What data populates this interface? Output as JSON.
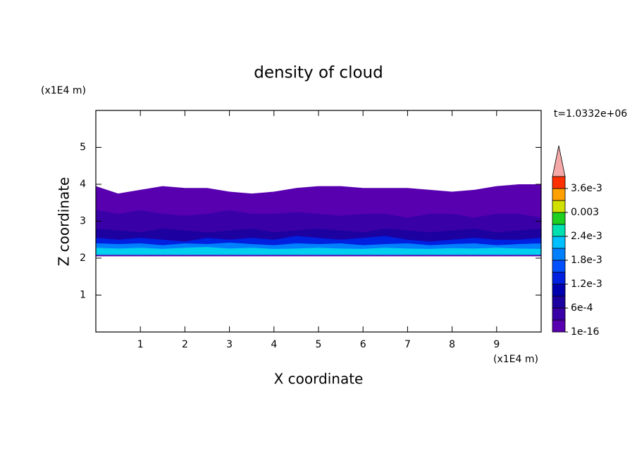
{
  "chart_data": {
    "type": "contour",
    "title": "density of cloud",
    "xlabel": "X coordinate",
    "ylabel": "Z coordinate",
    "x_unit": "(x1E4 m)",
    "y_unit": "(x1E4 m)",
    "annotation": "t=1.0332e+06",
    "xlim": [
      0,
      10
    ],
    "ylim": [
      0,
      6
    ],
    "xticks": [
      1,
      2,
      3,
      4,
      5,
      6,
      7,
      8,
      9
    ],
    "yticks": [
      1,
      2,
      3,
      4,
      5
    ],
    "x": [
      0,
      0.5,
      1,
      1.5,
      2,
      2.5,
      3,
      3.5,
      4,
      4.5,
      5,
      5.5,
      6,
      6.5,
      7,
      7.5,
      8,
      8.5,
      9,
      9.5,
      10
    ],
    "cloud_base": 2.07,
    "layers": [
      {
        "color": "#5800b0",
        "top": [
          3.95,
          3.75,
          3.85,
          3.95,
          3.9,
          3.9,
          3.8,
          3.75,
          3.8,
          3.9,
          3.95,
          3.95,
          3.9,
          3.9,
          3.9,
          3.85,
          3.8,
          3.85,
          3.95,
          4.0,
          4.0
        ]
      },
      {
        "color": "#3a00a8",
        "top": [
          3.3,
          3.2,
          3.3,
          3.2,
          3.15,
          3.2,
          3.3,
          3.2,
          3.2,
          3.25,
          3.2,
          3.15,
          3.2,
          3.2,
          3.1,
          3.2,
          3.2,
          3.1,
          3.2,
          3.2,
          3.1
        ]
      },
      {
        "color": "#1c00a0",
        "top": [
          2.8,
          2.75,
          2.7,
          2.8,
          2.75,
          2.7,
          2.75,
          2.8,
          2.7,
          2.75,
          2.8,
          2.75,
          2.7,
          2.8,
          2.75,
          2.7,
          2.75,
          2.8,
          2.7,
          2.75,
          2.8
        ]
      },
      {
        "color": "#0020e0",
        "top": [
          2.55,
          2.5,
          2.55,
          2.5,
          2.45,
          2.55,
          2.5,
          2.55,
          2.5,
          2.6,
          2.55,
          2.5,
          2.55,
          2.6,
          2.5,
          2.45,
          2.5,
          2.55,
          2.5,
          2.5,
          2.55
        ]
      },
      {
        "color": "#0080ff",
        "top": [
          2.4,
          2.38,
          2.4,
          2.35,
          2.4,
          2.38,
          2.42,
          2.38,
          2.35,
          2.4,
          2.38,
          2.4,
          2.35,
          2.38,
          2.4,
          2.35,
          2.38,
          2.4,
          2.35,
          2.38,
          2.4
        ]
      },
      {
        "color": "#00d0f0",
        "top": [
          2.28,
          2.26,
          2.28,
          2.25,
          2.28,
          2.3,
          2.26,
          2.28,
          2.25,
          2.26,
          2.28,
          2.26,
          2.25,
          2.28,
          2.26,
          2.25,
          2.27,
          2.26,
          2.28,
          2.26,
          2.25
        ]
      }
    ],
    "colorbar": {
      "clim": [
        1e-16,
        0.0039
      ],
      "colors": [
        "#5800b0",
        "#3a00a8",
        "#1c00a0",
        "#0000b0",
        "#0020e0",
        "#0050ff",
        "#0080ff",
        "#00c0ff",
        "#00e0b0",
        "#20d020",
        "#d0e000",
        "#ffa000",
        "#ff3000"
      ],
      "extend_color": "#f4a8a8",
      "ticks": [
        {
          "value": 1e-16,
          "label": "1e-16"
        },
        {
          "value": 0.0006,
          "label": "6e-4"
        },
        {
          "value": 0.0012,
          "label": "1.2e-3"
        },
        {
          "value": 0.0018,
          "label": "1.8e-3"
        },
        {
          "value": 0.0024,
          "label": "2.4e-3"
        },
        0.003,
        {
          "value": 0.0036,
          "label": "3.6e-3"
        }
      ]
    }
  }
}
